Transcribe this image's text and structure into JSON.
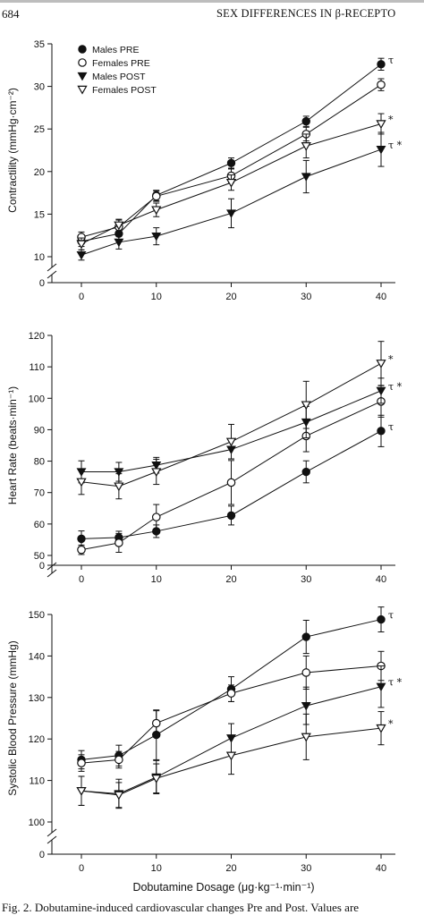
{
  "header": {
    "page_number": "684",
    "running_head": "SEX DIFFERENCES IN β-RECEPTO"
  },
  "caption": "Fig. 2. Dobutamine-induced cardiovascular changes Pre and Post. Values are",
  "chart_data": [
    {
      "type": "line",
      "ylabel": "Contractility (mmHg·cm⁻²)",
      "xlabel": "",
      "x": [
        0,
        5,
        10,
        20,
        30,
        40
      ],
      "xticks": [
        0,
        10,
        20,
        30,
        40
      ],
      "ylim": [
        10,
        35
      ],
      "yticks": [
        10,
        15,
        20,
        25,
        30,
        35
      ],
      "axis_break": true,
      "break_label": "0",
      "legend": "top-left",
      "series": [
        {
          "name": "Males PRE",
          "marker": "filled-circle",
          "values": [
            11.8,
            12.7,
            17.2,
            21.0,
            25.9,
            32.6
          ],
          "errors": [
            0.6,
            0.7,
            0.6,
            0.6,
            0.6,
            0.7
          ],
          "end_label": "τ"
        },
        {
          "name": "Females PRE",
          "marker": "open-circle",
          "values": [
            12.3,
            13.5,
            17.1,
            19.5,
            24.4,
            30.2
          ],
          "errors": [
            0.6,
            0.8,
            0.6,
            0.8,
            0.8,
            0.7
          ],
          "end_label": ""
        },
        {
          "name": "Males POST",
          "marker": "filled-triangle",
          "values": [
            10.2,
            11.7,
            12.4,
            15.1,
            19.4,
            22.6
          ],
          "errors": [
            0.6,
            0.8,
            1.0,
            1.7,
            1.9,
            2.0
          ],
          "end_label": "τ *"
        },
        {
          "name": "Females POST",
          "marker": "open-triangle",
          "values": [
            11.5,
            13.7,
            15.5,
            18.7,
            23.0,
            25.6
          ],
          "errors": [
            0.7,
            0.7,
            0.8,
            0.9,
            1.4,
            1.2
          ],
          "end_label": "*"
        }
      ]
    },
    {
      "type": "line",
      "ylabel": "Heart Rate (beats·min⁻¹)",
      "xlabel": "",
      "x": [
        0,
        5,
        10,
        20,
        30,
        40
      ],
      "xticks": [
        0,
        10,
        20,
        30,
        40
      ],
      "ylim": [
        50,
        120
      ],
      "yticks": [
        50,
        60,
        70,
        80,
        90,
        100,
        110,
        120
      ],
      "axis_break": true,
      "break_label": "0",
      "series": [
        {
          "name": "Males PRE",
          "marker": "filled-circle",
          "values": [
            55.3,
            55.7,
            57.7,
            62.7,
            76.6,
            89.6
          ],
          "errors": [
            2.5,
            2.0,
            2.0,
            3.0,
            3.5,
            5.0
          ],
          "end_label": "τ"
        },
        {
          "name": "Females PRE",
          "marker": "open-circle",
          "values": [
            51.8,
            54.0,
            62.2,
            73.2,
            88.0,
            99.0
          ],
          "errors": [
            1.5,
            3.0,
            4.0,
            7.0,
            5.0,
            5.0
          ],
          "end_label": ""
        },
        {
          "name": "Males POST",
          "marker": "filled-triangle",
          "values": [
            76.6,
            76.6,
            78.7,
            83.7,
            92.4,
            102.4
          ],
          "errors": [
            3.5,
            3.0,
            2.5,
            3.0,
            5.0,
            4.0
          ],
          "end_label": "τ *"
        },
        {
          "name": "Females POST",
          "marker": "open-triangle",
          "values": [
            73.4,
            72.0,
            76.6,
            86.2,
            97.9,
            111.1
          ],
          "errors": [
            4.0,
            4.0,
            4.0,
            5.5,
            7.5,
            7.0
          ],
          "end_label": "*"
        }
      ]
    },
    {
      "type": "line",
      "ylabel": "Systolic Blood Pressure (mmHg)",
      "xlabel": "Dobutamine Dosage (μg·kg⁻¹·min⁻¹)",
      "x": [
        0,
        5,
        10,
        20,
        30,
        40
      ],
      "xticks": [
        0,
        10,
        20,
        30,
        40
      ],
      "ylim": [
        100,
        150
      ],
      "yticks": [
        100,
        110,
        120,
        130,
        140,
        150
      ],
      "axis_break": true,
      "break_label": "0",
      "series": [
        {
          "name": "Males PRE",
          "marker": "filled-circle",
          "values": [
            115.0,
            116.0,
            121.0,
            132.0,
            144.6,
            148.8
          ],
          "errors": [
            2.2,
            2.5,
            6.0,
            3.0,
            4.0,
            3.0
          ],
          "end_label": "τ"
        },
        {
          "name": "Females PRE",
          "marker": "open-circle",
          "values": [
            114.2,
            115.0,
            123.8,
            131.0,
            136.0,
            137.6
          ],
          "errors": [
            2.0,
            2.0,
            3.0,
            2.0,
            4.0,
            3.5
          ],
          "end_label": ""
        },
        {
          "name": "Males POST",
          "marker": "filled-triangle",
          "values": [
            107.5,
            106.8,
            110.8,
            120.2,
            128.0,
            132.6
          ],
          "errors": [
            3.5,
            3.5,
            4.0,
            3.5,
            4.5,
            5.0
          ],
          "end_label": "τ *"
        },
        {
          "name": "Females POST",
          "marker": "open-triangle",
          "values": [
            107.5,
            106.5,
            110.5,
            116.0,
            120.5,
            122.6
          ],
          "errors": [
            3.5,
            3.0,
            3.5,
            4.5,
            5.5,
            4.0
          ],
          "end_label": "*"
        }
      ]
    }
  ]
}
